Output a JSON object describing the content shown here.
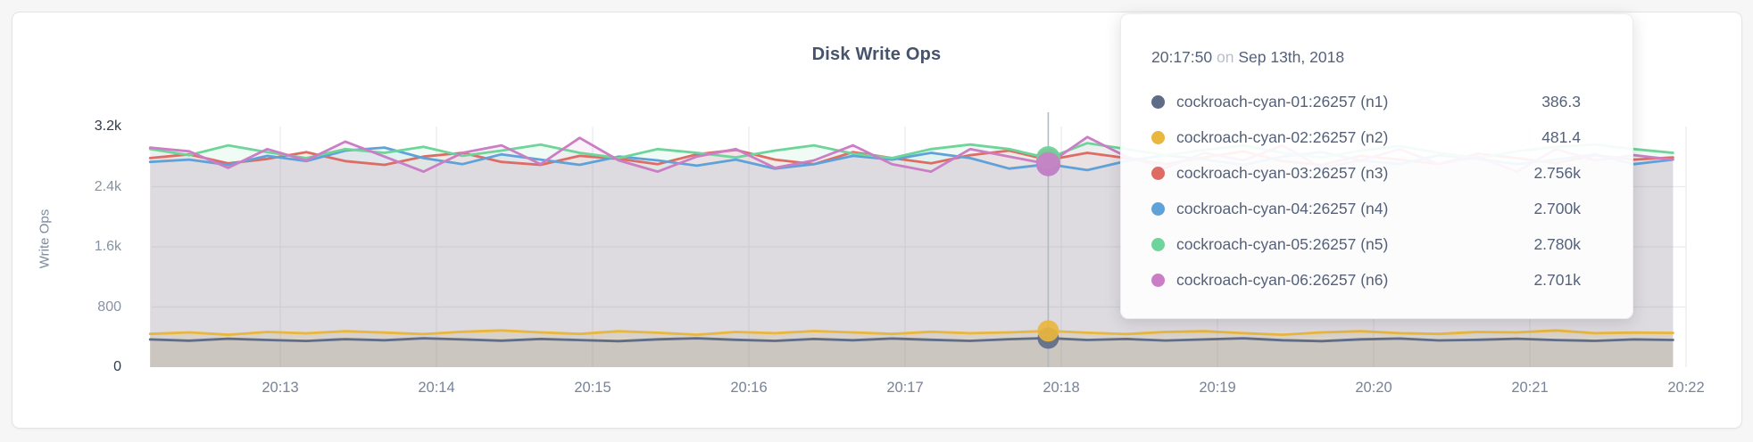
{
  "card": {
    "background": "#ffffff"
  },
  "chart_data": {
    "type": "line",
    "title": "Disk Write Ops",
    "ylabel": "Write Ops",
    "xlabel": "",
    "grid": true,
    "legend_position": "tooltip-overlay",
    "y_ticks": [
      {
        "label": "0",
        "value": 0,
        "emphasis": true
      },
      {
        "label": "800",
        "value": 800,
        "emphasis": false
      },
      {
        "label": "1.6k",
        "value": 1600,
        "emphasis": false
      },
      {
        "label": "2.4k",
        "value": 2400,
        "emphasis": false
      },
      {
        "label": "3.2k",
        "value": 3200,
        "emphasis": true
      }
    ],
    "ylim": [
      0,
      3200
    ],
    "x_ticks": [
      "20:13",
      "20:14",
      "20:15",
      "20:16",
      "20:17",
      "20:18",
      "20:19",
      "20:20",
      "20:21",
      "20:22"
    ],
    "tick_interval_sec": 60,
    "points_start_offset_sec": -50,
    "point_step_sec": 15,
    "highlight_index": 23,
    "series": [
      {
        "name": "cockroach-cyan-01:26257 (n1)",
        "color": "#5f6c87",
        "fill_opacity": 0.16,
        "values": [
          368,
          352,
          378,
          362,
          348,
          372,
          358,
          384,
          368,
          352,
          374,
          360,
          346,
          370,
          384,
          364,
          350,
          374,
          358,
          380,
          364,
          350,
          372,
          386.3,
          362,
          374,
          354,
          368,
          384,
          358,
          346,
          370,
          380,
          356,
          364,
          378,
          360,
          350,
          368,
          362
        ]
      },
      {
        "name": "cockroach-cyan-02:26257 (n2)",
        "color": "#e9b63e",
        "fill_opacity": 0.18,
        "values": [
          442,
          462,
          432,
          468,
          450,
          478,
          460,
          440,
          470,
          488,
          462,
          442,
          478,
          458,
          432,
          468,
          452,
          480,
          462,
          442,
          470,
          452,
          462,
          481.4,
          458,
          440,
          468,
          478,
          452,
          432,
          462,
          478,
          452,
          442,
          468,
          462,
          488,
          452,
          460,
          455
        ]
      },
      {
        "name": "cockroach-cyan-03:26257 (n3)",
        "color": "#df6c64",
        "fill_opacity": 0.1,
        "values": [
          2780,
          2830,
          2710,
          2770,
          2860,
          2740,
          2690,
          2800,
          2850,
          2730,
          2690,
          2810,
          2770,
          2700,
          2830,
          2890,
          2760,
          2700,
          2860,
          2780,
          2710,
          2820,
          2880,
          2756,
          2850,
          2780,
          2700,
          2790,
          2870,
          2740,
          2690,
          2810,
          2760,
          2700,
          2840,
          2780,
          2710,
          2820,
          2760,
          2790
        ]
      },
      {
        "name": "cockroach-cyan-04:26257 (n4)",
        "color": "#5fa2da",
        "fill_opacity": 0.1,
        "values": [
          2730,
          2760,
          2690,
          2810,
          2740,
          2880,
          2920,
          2780,
          2700,
          2830,
          2760,
          2690,
          2800,
          2750,
          2680,
          2760,
          2640,
          2700,
          2810,
          2760,
          2850,
          2780,
          2640,
          2700,
          2620,
          2740,
          2820,
          2760,
          2690,
          2800,
          2860,
          2750,
          2700,
          2820,
          2770,
          2700,
          2760,
          2830,
          2700,
          2760
        ]
      },
      {
        "name": "cockroach-cyan-05:26257 (n5)",
        "color": "#6ed59a",
        "fill_opacity": 0.1,
        "values": [
          2900,
          2820,
          2950,
          2860,
          2780,
          2900,
          2850,
          2930,
          2810,
          2880,
          2960,
          2850,
          2780,
          2900,
          2850,
          2790,
          2880,
          2950,
          2840,
          2780,
          2900,
          2960,
          2900,
          2780,
          2980,
          2900,
          2820,
          2890,
          2950,
          2850,
          2790,
          2880,
          2940,
          2850,
          2780,
          2870,
          2930,
          2960,
          2900,
          2850
        ]
      },
      {
        "name": "cockroach-cyan-06:26257 (n6)",
        "color": "#cb7ec5",
        "fill_opacity": 0.1,
        "values": [
          2920,
          2870,
          2650,
          2900,
          2750,
          3000,
          2800,
          2600,
          2850,
          2950,
          2700,
          3050,
          2750,
          2600,
          2800,
          2900,
          2650,
          2750,
          2950,
          2700,
          2600,
          2900,
          2800,
          2701,
          3060,
          2800,
          2650,
          2850,
          2750,
          2950,
          2650,
          2750,
          2900,
          2700,
          2800,
          2600,
          2900,
          2750,
          2820,
          2760
        ]
      }
    ]
  },
  "tooltip": {
    "time": "20:17:50",
    "preposition": "on",
    "date": "Sep 13th, 2018",
    "rows": [
      {
        "label": "cockroach-cyan-01:26257 (n1)",
        "value": "386.3",
        "color": "#5f6c87"
      },
      {
        "label": "cockroach-cyan-02:26257 (n2)",
        "value": "481.4",
        "color": "#e9b63e"
      },
      {
        "label": "cockroach-cyan-03:26257 (n3)",
        "value": "2.756k",
        "color": "#df6c64"
      },
      {
        "label": "cockroach-cyan-04:26257 (n4)",
        "value": "2.700k",
        "color": "#5fa2da"
      },
      {
        "label": "cockroach-cyan-05:26257 (n5)",
        "value": "2.780k",
        "color": "#6ed59a"
      },
      {
        "label": "cockroach-cyan-06:26257 (n6)",
        "value": "2.701k",
        "color": "#cb7ec5"
      }
    ]
  }
}
